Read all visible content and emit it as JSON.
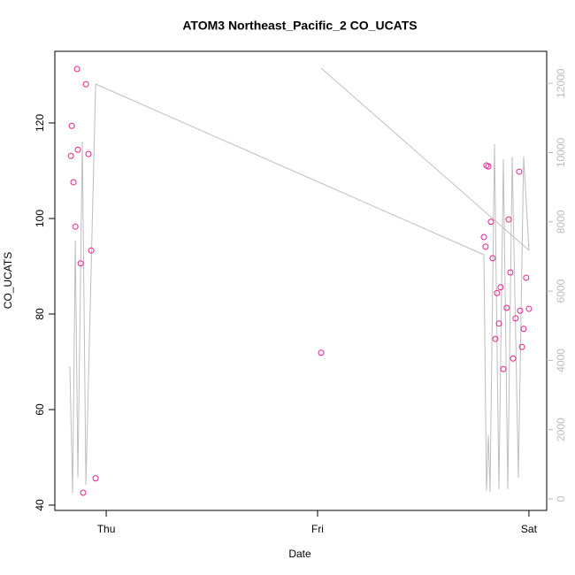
{
  "chart_data": {
    "type": "scatter",
    "title": "ATOM3 Northeast_Pacific_2 CO_UCATS",
    "x_label": "Date",
    "y_label": "CO_UCATS",
    "xlim": [
      -0.243,
      2.084
    ],
    "xticks": [
      {
        "value": 0,
        "label": "Thu"
      },
      {
        "value": 1,
        "label": "Fri"
      },
      {
        "value": 2,
        "label": "Sat"
      }
    ],
    "ylim": [
      38.89,
      135
    ],
    "yticks": [
      40,
      60,
      80,
      100,
      120
    ],
    "y2lim": [
      -332,
      12925
    ],
    "y2ticks": [
      0,
      2000,
      4000,
      6000,
      8000,
      10000,
      12000
    ],
    "y2_tick_color": "#bbbbbb",
    "series": [
      {
        "mark": "points",
        "color": "#e8208f",
        "x": [
          -0.167,
          -0.163,
          -0.155,
          -0.146,
          -0.138,
          -0.134,
          -0.121,
          -0.109,
          -0.096,
          -0.084,
          -0.071,
          -0.05,
          1.017,
          1.787,
          1.795,
          1.799,
          1.808,
          1.82,
          1.828,
          1.841,
          1.849,
          1.858,
          1.866,
          1.879,
          1.895,
          1.904,
          1.912,
          1.925,
          1.937,
          1.954,
          1.958,
          1.967,
          1.975,
          1.987,
          2.0
        ],
        "values": [
          113.1,
          119.4,
          107.6,
          98.3,
          131.3,
          114.4,
          90.6,
          42.6,
          128.1,
          113.5,
          93.3,
          45.6,
          71.9,
          96.1,
          94.1,
          111.1,
          110.9,
          99.3,
          91.7,
          74.8,
          84.4,
          78.0,
          85.6,
          68.5,
          81.3,
          99.8,
          88.7,
          70.7,
          79.1,
          109.8,
          80.7,
          73.1,
          76.9,
          87.6,
          81.1
        ]
      },
      {
        "mark": "line",
        "axis": "y2",
        "color": "#bebebe",
        "x": [
          -0.172,
          -0.159,
          -0.146,
          -0.134,
          -0.113,
          -0.096,
          -0.05,
          1.787,
          1.799,
          1.808,
          1.816,
          1.837,
          1.858,
          1.879,
          1.9,
          1.921,
          1.95,
          1.975,
          2.0,
          null,
          1.017,
          2.0
        ],
        "values": [
          3831,
          179,
          7459,
          613,
          10319,
          409,
          11979,
          7050,
          230,
          1839,
          204,
          10243,
          281,
          9808,
          281,
          9885,
          613,
          9885,
          7178,
          null,
          12439,
          7178
        ]
      }
    ]
  }
}
